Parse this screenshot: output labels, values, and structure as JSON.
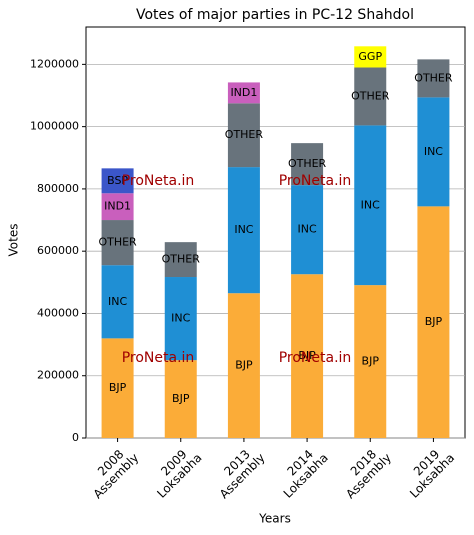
{
  "chart_data": {
    "type": "stacked-bar",
    "title": "Votes of major parties in PC-12 Shahdol",
    "xlabel": "Years",
    "ylabel": "Votes",
    "watermark": "ProNeta.in",
    "categories": [
      [
        "2008",
        "Assembly"
      ],
      [
        "2009",
        "Loksabha"
      ],
      [
        "2013",
        "Assembly"
      ],
      [
        "2014",
        "Loksabha"
      ],
      [
        "2018",
        "Assembly"
      ],
      [
        "2019",
        "Loksabha"
      ]
    ],
    "series": [
      {
        "name": "BJP",
        "color": "#fbac38",
        "values": [
          320000,
          250000,
          465000,
          526000,
          491000,
          744000
        ]
      },
      {
        "name": "INC",
        "color": "#1f8fd4",
        "values": [
          235000,
          267000,
          405000,
          286000,
          513000,
          350000
        ]
      },
      {
        "name": "OTHER",
        "color": "#68737c",
        "values": [
          145000,
          112000,
          205000,
          135000,
          186000,
          122000
        ]
      },
      {
        "name": "IND1",
        "color": "#c95fbd",
        "values": [
          86000,
          null,
          67000,
          null,
          null,
          null
        ]
      },
      {
        "name": "BSP",
        "color": "#3b56c9",
        "values": [
          80000,
          null,
          null,
          null,
          null,
          null
        ]
      },
      {
        "name": "GGP",
        "color": "#ffff00",
        "values": [
          null,
          null,
          null,
          null,
          68000,
          null
        ]
      }
    ],
    "ylim": [
      0,
      1320000
    ],
    "yticks": [
      0,
      200000,
      400000,
      600000,
      800000,
      1000000,
      1200000
    ],
    "grid": true
  }
}
